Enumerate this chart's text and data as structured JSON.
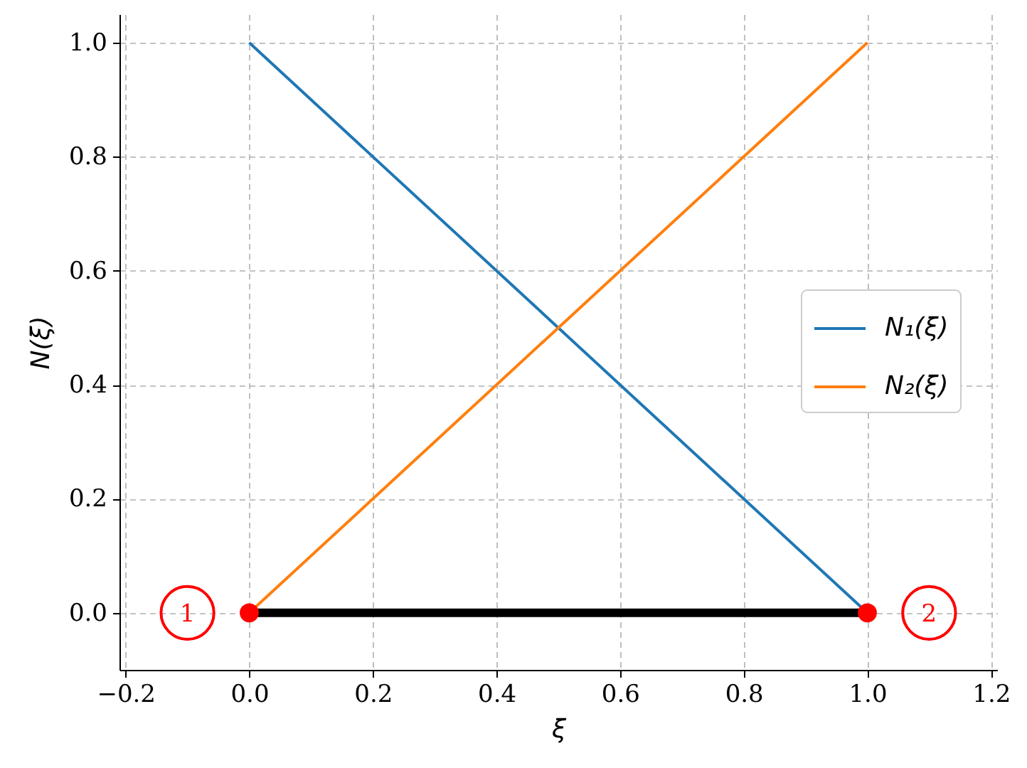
{
  "chart_data": {
    "type": "line",
    "xlabel": "ξ",
    "ylabel": "N(ξ)",
    "x": [
      0,
      1
    ],
    "series": [
      {
        "name": "N₁(ξ)",
        "color": "#1f77b4",
        "values": [
          1,
          0
        ]
      },
      {
        "name": "N₂(ξ)",
        "color": "#ff7f0e",
        "values": [
          0,
          1
        ]
      },
      {
        "type": "line",
        "color": "#000000",
        "values": [
          0,
          0
        ]
      },
      {
        "type": "scatter",
        "color": "#ff0000",
        "values": [
          0,
          0
        ],
        "marker": "circle"
      }
    ],
    "annotations": [
      {
        "text": "1",
        "x": -0.1,
        "y": 0
      },
      {
        "text": "2",
        "x": 1.1,
        "y": 0
      }
    ],
    "xlim": [
      -0.21,
      1.21
    ],
    "ylim": [
      -0.1,
      1.05
    ],
    "xticks": [
      {
        "value": -0.2,
        "label": "−0.2"
      },
      {
        "value": 0,
        "label": "0.0"
      },
      0.2,
      0.4,
      0.6,
      0.8,
      {
        "value": 1,
        "label": "1.0"
      },
      1.2
    ],
    "yticks": [
      {
        "value": 0,
        "label": "0.0"
      },
      0.2,
      0.4,
      0.6,
      0.8,
      {
        "value": 1,
        "label": "1.0"
      }
    ],
    "grid": true,
    "legend": "right",
    "marker": "none",
    "line_style": "solid"
  }
}
